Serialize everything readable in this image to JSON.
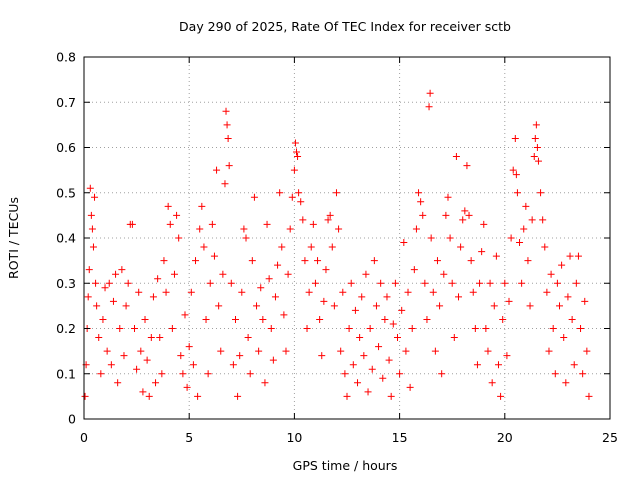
{
  "chart_data": {
    "type": "scatter",
    "title": "Day 290 of 2025, Rate Of TEC Index for receiver sctb",
    "xlabel": "GPS time / hours",
    "ylabel": "ROTI / TECUs",
    "xlim": [
      0,
      25
    ],
    "ylim": [
      0,
      0.8
    ],
    "x_ticks": [
      "0",
      "5",
      "10",
      "15",
      "20",
      "25"
    ],
    "y_ticks": [
      "0",
      "0.1",
      "0.2",
      "0.3",
      "0.4",
      "0.5",
      "0.6",
      "0.7",
      "0.8"
    ],
    "grid": true,
    "legend": "none",
    "marker": "plus",
    "color": "#ff0000",
    "series": [
      {
        "points": [
          [
            0.05,
            0.05
          ],
          [
            0.1,
            0.12
          ],
          [
            0.15,
            0.2
          ],
          [
            0.2,
            0.27
          ],
          [
            0.25,
            0.33
          ],
          [
            0.3,
            0.51
          ],
          [
            0.35,
            0.45
          ],
          [
            0.4,
            0.42
          ],
          [
            0.45,
            0.38
          ],
          [
            0.5,
            0.49
          ],
          [
            0.55,
            0.3
          ],
          [
            0.6,
            0.25
          ],
          [
            0.7,
            0.18
          ],
          [
            0.8,
            0.1
          ],
          [
            0.9,
            0.22
          ],
          [
            1.0,
            0.29
          ],
          [
            1.1,
            0.15
          ],
          [
            1.2,
            0.3
          ],
          [
            1.3,
            0.12
          ],
          [
            1.4,
            0.26
          ],
          [
            1.5,
            0.32
          ],
          [
            1.6,
            0.08
          ],
          [
            1.7,
            0.2
          ],
          [
            1.8,
            0.33
          ],
          [
            1.9,
            0.14
          ],
          [
            2.0,
            0.25
          ],
          [
            2.1,
            0.3
          ],
          [
            2.2,
            0.43
          ],
          [
            2.3,
            0.43
          ],
          [
            2.4,
            0.2
          ],
          [
            2.5,
            0.11
          ],
          [
            2.6,
            0.28
          ],
          [
            2.7,
            0.15
          ],
          [
            2.8,
            0.06
          ],
          [
            2.9,
            0.22
          ],
          [
            3.0,
            0.13
          ],
          [
            3.1,
            0.05
          ],
          [
            3.2,
            0.18
          ],
          [
            3.3,
            0.27
          ],
          [
            3.4,
            0.08
          ],
          [
            3.5,
            0.31
          ],
          [
            3.6,
            0.18
          ],
          [
            3.7,
            0.1
          ],
          [
            3.8,
            0.35
          ],
          [
            3.9,
            0.28
          ],
          [
            4.0,
            0.47
          ],
          [
            4.1,
            0.43
          ],
          [
            4.2,
            0.2
          ],
          [
            4.3,
            0.32
          ],
          [
            4.4,
            0.45
          ],
          [
            4.5,
            0.4
          ],
          [
            4.6,
            0.14
          ],
          [
            4.7,
            0.1
          ],
          [
            4.8,
            0.23
          ],
          [
            4.9,
            0.07
          ],
          [
            5.0,
            0.16
          ],
          [
            5.1,
            0.28
          ],
          [
            5.2,
            0.12
          ],
          [
            5.3,
            0.35
          ],
          [
            5.4,
            0.05
          ],
          [
            5.5,
            0.42
          ],
          [
            5.6,
            0.47
          ],
          [
            5.7,
            0.38
          ],
          [
            5.8,
            0.22
          ],
          [
            5.9,
            0.1
          ],
          [
            6.0,
            0.3
          ],
          [
            6.1,
            0.43
          ],
          [
            6.2,
            0.36
          ],
          [
            6.3,
            0.55
          ],
          [
            6.4,
            0.25
          ],
          [
            6.5,
            0.15
          ],
          [
            6.6,
            0.32
          ],
          [
            6.7,
            0.52
          ],
          [
            6.75,
            0.68
          ],
          [
            6.8,
            0.65
          ],
          [
            6.85,
            0.62
          ],
          [
            6.9,
            0.56
          ],
          [
            7.0,
            0.3
          ],
          [
            7.1,
            0.12
          ],
          [
            7.2,
            0.22
          ],
          [
            7.3,
            0.05
          ],
          [
            7.4,
            0.14
          ],
          [
            7.5,
            0.28
          ],
          [
            7.6,
            0.42
          ],
          [
            7.7,
            0.4
          ],
          [
            7.8,
            0.18
          ],
          [
            7.9,
            0.1
          ],
          [
            8.0,
            0.35
          ],
          [
            8.1,
            0.49
          ],
          [
            8.2,
            0.25
          ],
          [
            8.3,
            0.15
          ],
          [
            8.4,
            0.29
          ],
          [
            8.5,
            0.22
          ],
          [
            8.6,
            0.08
          ],
          [
            8.7,
            0.43
          ],
          [
            8.8,
            0.31
          ],
          [
            8.9,
            0.2
          ],
          [
            9.0,
            0.13
          ],
          [
            9.1,
            0.27
          ],
          [
            9.2,
            0.34
          ],
          [
            9.3,
            0.5
          ],
          [
            9.4,
            0.38
          ],
          [
            9.5,
            0.23
          ],
          [
            9.6,
            0.15
          ],
          [
            9.7,
            0.32
          ],
          [
            9.8,
            0.42
          ],
          [
            9.9,
            0.49
          ],
          [
            10.0,
            0.55
          ],
          [
            10.05,
            0.61
          ],
          [
            10.1,
            0.59
          ],
          [
            10.15,
            0.58
          ],
          [
            10.2,
            0.5
          ],
          [
            10.3,
            0.48
          ],
          [
            10.4,
            0.44
          ],
          [
            10.5,
            0.35
          ],
          [
            10.6,
            0.2
          ],
          [
            10.7,
            0.28
          ],
          [
            10.8,
            0.38
          ],
          [
            10.9,
            0.43
          ],
          [
            11.0,
            0.3
          ],
          [
            11.1,
            0.35
          ],
          [
            11.2,
            0.22
          ],
          [
            11.3,
            0.14
          ],
          [
            11.4,
            0.26
          ],
          [
            11.5,
            0.33
          ],
          [
            11.6,
            0.44
          ],
          [
            11.7,
            0.45
          ],
          [
            11.8,
            0.38
          ],
          [
            11.9,
            0.25
          ],
          [
            12.0,
            0.5
          ],
          [
            12.1,
            0.42
          ],
          [
            12.2,
            0.15
          ],
          [
            12.3,
            0.28
          ],
          [
            12.4,
            0.1
          ],
          [
            12.5,
            0.05
          ],
          [
            12.6,
            0.2
          ],
          [
            12.7,
            0.3
          ],
          [
            12.8,
            0.12
          ],
          [
            12.9,
            0.24
          ],
          [
            13.0,
            0.08
          ],
          [
            13.1,
            0.18
          ],
          [
            13.2,
            0.27
          ],
          [
            13.3,
            0.14
          ],
          [
            13.4,
            0.32
          ],
          [
            13.5,
            0.06
          ],
          [
            13.6,
            0.2
          ],
          [
            13.7,
            0.11
          ],
          [
            13.8,
            0.35
          ],
          [
            13.9,
            0.25
          ],
          [
            14.0,
            0.16
          ],
          [
            14.1,
            0.3
          ],
          [
            14.2,
            0.09
          ],
          [
            14.3,
            0.22
          ],
          [
            14.4,
            0.27
          ],
          [
            14.5,
            0.13
          ],
          [
            14.6,
            0.05
          ],
          [
            14.7,
            0.21
          ],
          [
            14.8,
            0.3
          ],
          [
            14.9,
            0.18
          ],
          [
            15.0,
            0.1
          ],
          [
            15.1,
            0.24
          ],
          [
            15.2,
            0.39
          ],
          [
            15.3,
            0.15
          ],
          [
            15.4,
            0.28
          ],
          [
            15.5,
            0.07
          ],
          [
            15.6,
            0.2
          ],
          [
            15.7,
            0.33
          ],
          [
            15.8,
            0.42
          ],
          [
            15.9,
            0.5
          ],
          [
            16.0,
            0.48
          ],
          [
            16.1,
            0.45
          ],
          [
            16.2,
            0.3
          ],
          [
            16.3,
            0.22
          ],
          [
            16.4,
            0.69
          ],
          [
            16.45,
            0.72
          ],
          [
            16.5,
            0.4
          ],
          [
            16.6,
            0.28
          ],
          [
            16.7,
            0.15
          ],
          [
            16.8,
            0.35
          ],
          [
            16.9,
            0.25
          ],
          [
            17.0,
            0.1
          ],
          [
            17.1,
            0.32
          ],
          [
            17.2,
            0.45
          ],
          [
            17.3,
            0.49
          ],
          [
            17.4,
            0.4
          ],
          [
            17.5,
            0.3
          ],
          [
            17.6,
            0.18
          ],
          [
            17.7,
            0.58
          ],
          [
            17.8,
            0.27
          ],
          [
            17.9,
            0.38
          ],
          [
            18.0,
            0.44
          ],
          [
            18.1,
            0.46
          ],
          [
            18.2,
            0.56
          ],
          [
            18.3,
            0.45
          ],
          [
            18.4,
            0.35
          ],
          [
            18.5,
            0.28
          ],
          [
            18.6,
            0.2
          ],
          [
            18.7,
            0.12
          ],
          [
            18.8,
            0.3
          ],
          [
            18.9,
            0.37
          ],
          [
            19.0,
            0.43
          ],
          [
            19.1,
            0.2
          ],
          [
            19.2,
            0.15
          ],
          [
            19.3,
            0.3
          ],
          [
            19.4,
            0.08
          ],
          [
            19.5,
            0.25
          ],
          [
            19.6,
            0.36
          ],
          [
            19.7,
            0.12
          ],
          [
            19.8,
            0.05
          ],
          [
            19.9,
            0.22
          ],
          [
            20.0,
            0.3
          ],
          [
            20.1,
            0.14
          ],
          [
            20.2,
            0.26
          ],
          [
            20.3,
            0.4
          ],
          [
            20.4,
            0.55
          ],
          [
            20.5,
            0.62
          ],
          [
            20.55,
            0.54
          ],
          [
            20.6,
            0.5
          ],
          [
            20.7,
            0.39
          ],
          [
            20.8,
            0.3
          ],
          [
            20.9,
            0.42
          ],
          [
            21.0,
            0.47
          ],
          [
            21.1,
            0.35
          ],
          [
            21.2,
            0.25
          ],
          [
            21.3,
            0.44
          ],
          [
            21.4,
            0.58
          ],
          [
            21.45,
            0.62
          ],
          [
            21.5,
            0.65
          ],
          [
            21.55,
            0.6
          ],
          [
            21.6,
            0.57
          ],
          [
            21.7,
            0.5
          ],
          [
            21.8,
            0.44
          ],
          [
            21.9,
            0.38
          ],
          [
            22.0,
            0.28
          ],
          [
            22.1,
            0.15
          ],
          [
            22.2,
            0.32
          ],
          [
            22.3,
            0.2
          ],
          [
            22.4,
            0.1
          ],
          [
            22.5,
            0.3
          ],
          [
            22.6,
            0.25
          ],
          [
            22.7,
            0.34
          ],
          [
            22.8,
            0.18
          ],
          [
            22.9,
            0.08
          ],
          [
            23.0,
            0.27
          ],
          [
            23.1,
            0.36
          ],
          [
            23.2,
            0.22
          ],
          [
            23.3,
            0.12
          ],
          [
            23.4,
            0.3
          ],
          [
            23.5,
            0.36
          ],
          [
            23.6,
            0.2
          ],
          [
            23.7,
            0.1
          ],
          [
            23.8,
            0.26
          ],
          [
            23.9,
            0.15
          ],
          [
            24.0,
            0.05
          ]
        ]
      }
    ]
  }
}
